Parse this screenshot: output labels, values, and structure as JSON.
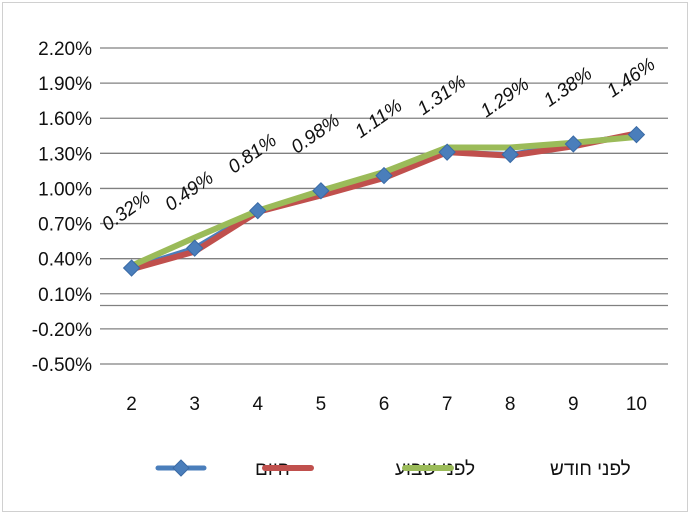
{
  "chart_data": {
    "type": "line",
    "title": "",
    "xlabel": "",
    "ylabel": "",
    "x": [
      "2",
      "3",
      "4",
      "5",
      "6",
      "7",
      "8",
      "9",
      "10"
    ],
    "y_ticks": [
      "-0.50%",
      "-0.20%",
      "0.10%",
      "0.40%",
      "0.70%",
      "1.00%",
      "1.30%",
      "1.60%",
      "1.90%",
      "2.20%"
    ],
    "ylim": [
      -0.5,
      2.2
    ],
    "grid": true,
    "legend_position": "bottom",
    "series": [
      {
        "name": "היום",
        "color": "#4a7ebb",
        "marker": "diamond",
        "values": [
          0.32,
          0.49,
          0.81,
          0.98,
          1.11,
          1.31,
          1.29,
          1.38,
          1.46
        ]
      },
      {
        "name": "לפני שבוע",
        "color": "#c0504d",
        "marker": "none",
        "values": [
          0.31,
          0.46,
          0.8,
          0.94,
          1.09,
          1.31,
          1.28,
          1.36,
          1.47
        ]
      },
      {
        "name": "לפני חודש",
        "color": "#9bbb59",
        "marker": "none",
        "values": [
          0.34,
          0.58,
          0.81,
          0.98,
          1.14,
          1.35,
          1.35,
          1.39,
          1.44
        ]
      }
    ],
    "data_labels": [
      "0.32%",
      "0.49%",
      "0.81%",
      "0.98%",
      "1.11%",
      "1.31%",
      "1.29%",
      "1.38%",
      "1.46%"
    ]
  }
}
